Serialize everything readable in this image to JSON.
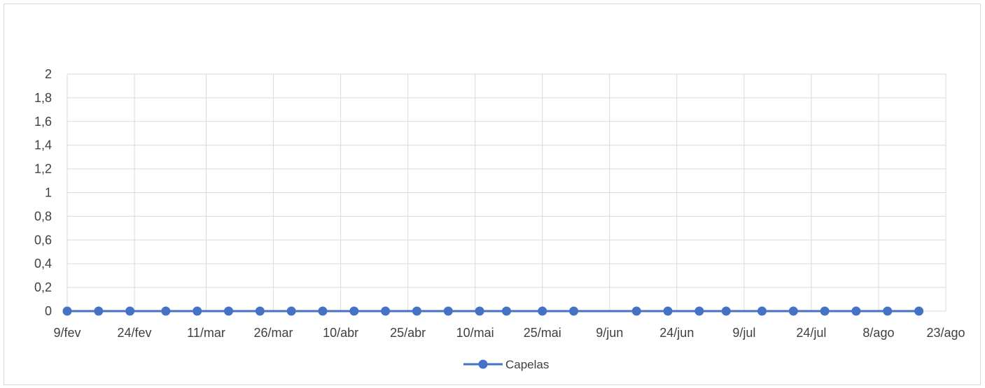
{
  "chart_data": {
    "type": "line",
    "title": "",
    "xlabel": "",
    "ylabel": "",
    "x_tick_labels": [
      "9/fev",
      "24/fev",
      "11/mar",
      "26/mar",
      "10/abr",
      "25/abr",
      "10/mai",
      "25/mai",
      "9/jun",
      "24/jun",
      "9/jul",
      "24/jul",
      "8/ago",
      "23/ago"
    ],
    "y_tick_labels": [
      "0",
      "0,2",
      "0,4",
      "0,6",
      "0,8",
      "1",
      "1,2",
      "1,4",
      "1,6",
      "1,8",
      "2"
    ],
    "xlim": [
      "9/fev",
      "23/ago"
    ],
    "ylim": [
      0,
      2
    ],
    "grid": true,
    "legend_position": "bottom",
    "series": [
      {
        "name": "Capelas",
        "color": "#4472c4",
        "x": [
          "9/fev",
          "16/fev",
          "23/fev",
          "2/mar",
          "9/mar",
          "16/mar",
          "23/mar",
          "30/mar",
          "6/abr",
          "13/abr",
          "20/abr",
          "27/abr",
          "4/mai",
          "11/mai",
          "17/mai",
          "25/mai",
          "1/jun",
          "15/jun",
          "22/jun",
          "29/jun",
          "5/jul",
          "13/jul",
          "20/jul",
          "27/jul",
          "3/ago",
          "10/ago",
          "17/ago"
        ],
        "values": [
          0,
          0,
          0,
          0,
          0,
          0,
          0,
          0,
          0,
          0,
          0,
          0,
          0,
          0,
          0,
          0,
          0,
          0,
          0,
          0,
          0,
          0,
          0,
          0,
          0,
          0,
          0
        ]
      }
    ]
  }
}
